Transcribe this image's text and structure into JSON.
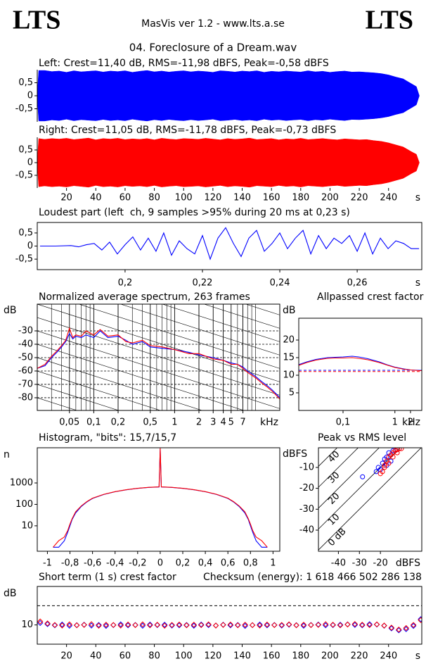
{
  "header": {
    "left_logo": "LTS",
    "right_logo": "LTS",
    "subtitle": "MasVis ver 1.2 - www.lts.a.se",
    "track": "04. Foreclosure of a Dream.wav"
  },
  "chart_data": [
    {
      "type": "area",
      "mirrored": true,
      "title": "Left: Crest=11,40 dB, RMS=-11,98 dBFS, Peak=-0,58 dBFS",
      "color": "#0000ff",
      "x": [
        0,
        1,
        5,
        10,
        15,
        20,
        25,
        30,
        35,
        40,
        45,
        50,
        55,
        60,
        65,
        70,
        75,
        80,
        85,
        90,
        95,
        100,
        105,
        110,
        115,
        120,
        125,
        130,
        135,
        140,
        145,
        150,
        155,
        160,
        165,
        170,
        175,
        180,
        185,
        190,
        195,
        200,
        205,
        210,
        215,
        220,
        225,
        230,
        235,
        240,
        245,
        250,
        253,
        256,
        259,
        261
      ],
      "values": [
        0.05,
        0.97,
        0.97,
        0.93,
        0.95,
        0.9,
        0.96,
        0.92,
        0.94,
        0.96,
        0.91,
        0.95,
        0.93,
        0.96,
        0.9,
        0.94,
        0.97,
        0.92,
        0.95,
        0.91,
        0.94,
        0.96,
        0.92,
        0.95,
        0.93,
        0.9,
        0.96,
        0.94,
        0.91,
        0.95,
        0.93,
        0.96,
        0.9,
        0.94,
        0.92,
        0.95,
        0.93,
        0.91,
        0.96,
        0.92,
        0.94,
        0.9,
        0.93,
        0.95,
        0.91,
        0.92,
        0.9,
        0.88,
        0.85,
        0.8,
        0.72,
        0.65,
        0.55,
        0.45,
        0.35,
        0
      ],
      "xlim": [
        0,
        262.7
      ],
      "ylim": [
        -1,
        1
      ],
      "yticks": [
        {
          "value": 0.5,
          "label": "0,5"
        },
        0,
        {
          "value": -0.5,
          "label": "-0,5"
        }
      ]
    },
    {
      "type": "area",
      "mirrored": true,
      "title": "Right: Crest=11,05 dB, RMS=-11,78 dBFS, Peak=-0,73 dBFS",
      "color": "#ff0000",
      "x": [
        0,
        1,
        5,
        10,
        15,
        20,
        25,
        30,
        35,
        40,
        45,
        50,
        55,
        60,
        65,
        70,
        75,
        80,
        85,
        90,
        95,
        100,
        105,
        110,
        115,
        120,
        125,
        130,
        135,
        140,
        145,
        150,
        155,
        160,
        165,
        170,
        175,
        180,
        185,
        190,
        195,
        200,
        205,
        210,
        215,
        220,
        225,
        230,
        235,
        240,
        245,
        250,
        253,
        256,
        259,
        261
      ],
      "values": [
        0.05,
        0.95,
        0.92,
        0.95,
        0.93,
        0.96,
        0.91,
        0.94,
        0.97,
        0.9,
        0.95,
        0.93,
        0.96,
        0.91,
        0.94,
        0.92,
        0.95,
        0.9,
        0.96,
        0.93,
        0.91,
        0.95,
        0.94,
        0.92,
        0.96,
        0.93,
        0.9,
        0.95,
        0.92,
        0.94,
        0.97,
        0.91,
        0.93,
        0.95,
        0.9,
        0.94,
        0.92,
        0.96,
        0.91,
        0.93,
        0.95,
        0.92,
        0.9,
        0.94,
        0.92,
        0.9,
        0.91,
        0.87,
        0.84,
        0.78,
        0.7,
        0.62,
        0.52,
        0.42,
        0.33,
        0
      ],
      "xlim": [
        0,
        262.7
      ],
      "ylim": [
        -1,
        1
      ],
      "yticks": [
        {
          "value": 0.5,
          "label": "0,5"
        },
        0,
        {
          "value": -0.5,
          "label": "-0,5"
        }
      ],
      "xticks": [
        20,
        40,
        60,
        80,
        100,
        120,
        140,
        160,
        180,
        200,
        220,
        240
      ],
      "x_unit": "s"
    },
    {
      "type": "line",
      "title": "Loudest part (left  ch, 9 samples >95% during 20 ms at 0,23 s)",
      "color": "#0000ff",
      "x": [
        0.178,
        0.182,
        0.186,
        0.188,
        0.19,
        0.192,
        0.194,
        0.196,
        0.198,
        0.2,
        0.202,
        0.204,
        0.206,
        0.208,
        0.21,
        0.212,
        0.214,
        0.216,
        0.218,
        0.22,
        0.222,
        0.224,
        0.226,
        0.228,
        0.23,
        0.232,
        0.234,
        0.236,
        0.238,
        0.24,
        0.242,
        0.244,
        0.246,
        0.248,
        0.25,
        0.252,
        0.254,
        0.256,
        0.258,
        0.26,
        0.262,
        0.264,
        0.266,
        0.268,
        0.27,
        0.272,
        0.274,
        0.276
      ],
      "values": [
        0,
        0,
        0.02,
        -0.03,
        0.05,
        0.1,
        -0.15,
        0.15,
        -0.3,
        0.05,
        0.35,
        -0.15,
        0.3,
        -0.2,
        0.5,
        -0.35,
        0.2,
        -0.1,
        -0.3,
        0.4,
        -0.5,
        0.3,
        0.7,
        0.1,
        -0.4,
        0.3,
        0.6,
        -0.2,
        0.1,
        0.5,
        -0.1,
        0.3,
        0.6,
        -0.3,
        0.4,
        -0.1,
        0.3,
        0.1,
        0.4,
        -0.2,
        0.5,
        -0.3,
        0.3,
        -0.1,
        0.2,
        0.1,
        -0.1,
        -0.1
      ],
      "xlim": [
        0.1773,
        0.2767
      ],
      "ylim": [
        -0.9,
        0.9
      ],
      "yticks": [
        {
          "value": 0.5,
          "label": "0,5"
        },
        0,
        {
          "value": -0.5,
          "label": "-0,5"
        }
      ],
      "xticks": [
        {
          "value": 0.2,
          "label": "0,2"
        },
        {
          "value": 0.22,
          "label": "0,22"
        },
        {
          "value": 0.24,
          "label": "0,24"
        },
        {
          "value": 0.26,
          "label": "0,26"
        }
      ],
      "x_unit": "s"
    },
    {
      "type": "line",
      "title": "Normalized average spectrum, 263 frames",
      "xscale": "log",
      "grid": true,
      "ylabel": "dB",
      "x_unit": "kHz",
      "x": [
        0.02,
        0.025,
        0.03,
        0.035,
        0.04,
        0.045,
        0.05,
        0.055,
        0.06,
        0.07,
        0.08,
        0.1,
        0.12,
        0.15,
        0.2,
        0.25,
        0.3,
        0.4,
        0.5,
        0.7,
        1,
        1.5,
        2,
        3,
        4,
        5,
        6,
        7,
        8,
        10,
        12,
        14,
        16,
        18,
        20
      ],
      "series": [
        {
          "color": "#0000ff",
          "values": [
            -58,
            -56,
            -50,
            -46,
            -42,
            -38,
            -32,
            -36,
            -34,
            -35,
            -33,
            -35,
            -30,
            -35,
            -34,
            -37,
            -40,
            -38,
            -42,
            -43,
            -44,
            -46,
            -48,
            -50,
            -52,
            -54,
            -55,
            -57,
            -60,
            -64,
            -68,
            -71,
            -74,
            -77,
            -80
          ]
        },
        {
          "color": "#ff0000",
          "values": [
            -58,
            -55,
            -49,
            -45,
            -41,
            -37,
            -28,
            -35,
            -33,
            -34,
            -30,
            -33,
            -29,
            -34,
            -33,
            -38,
            -39,
            -37,
            -41,
            -42,
            -44,
            -47,
            -47,
            -51,
            -52,
            -55,
            -55,
            -58,
            -61,
            -65,
            -69,
            -72,
            -75,
            -78,
            -81
          ]
        }
      ],
      "xlim": [
        0.02,
        20
      ],
      "ylim": [
        -89.5,
        -10
      ],
      "yticks": [
        -30,
        -40,
        -50,
        -60,
        -70,
        -80
      ],
      "xticks": [
        {
          "value": 0.05,
          "label": "0,05"
        },
        {
          "value": 0.1,
          "label": "0,1"
        },
        {
          "value": 0.2,
          "label": "0,2"
        },
        {
          "value": 0.5,
          "label": "0,5"
        },
        1,
        2,
        3,
        4,
        5,
        7
      ]
    },
    {
      "type": "line",
      "title": "Allpassed crest factor",
      "xscale": "log",
      "ylabel": "dB",
      "x_unit": "kHz",
      "x": [
        0.014,
        0.02,
        0.03,
        0.05,
        0.07,
        0.1,
        0.15,
        0.2,
        0.3,
        0.5,
        0.7,
        1,
        1.5,
        2,
        3,
        3.3
      ],
      "series": [
        {
          "color": "#0000ff",
          "values": [
            13,
            13.8,
            14.5,
            15,
            15.1,
            15.2,
            15.4,
            15.2,
            14.7,
            13.8,
            13,
            12.3,
            11.8,
            11.5,
            11.4,
            11.4
          ]
        },
        {
          "color": "#ff0000",
          "values": [
            12.8,
            13.6,
            14.3,
            14.8,
            14.9,
            14.9,
            15,
            14.8,
            14.4,
            13.6,
            12.9,
            12.2,
            11.7,
            11.5,
            11.3,
            11.3
          ]
        }
      ],
      "reference_lines": [
        {
          "value": 11.4,
          "color": "#0000ff"
        },
        {
          "value": 11.05,
          "color": "#ff0000"
        }
      ],
      "xlim": [
        0.014,
        3.3
      ],
      "ylim": [
        0,
        26.2
      ],
      "yticks": [
        20,
        15,
        10,
        5
      ],
      "xticks": [
        {
          "value": 0.1,
          "label": "0,1"
        },
        1,
        2
      ]
    },
    {
      "type": "line",
      "title": "Histogram, \"bits\": 15,7/15,7",
      "yscale": "log",
      "ylabel": "n",
      "x": [
        -0.95,
        -0.9,
        -0.85,
        -0.82,
        -0.8,
        -0.78,
        -0.75,
        -0.7,
        -0.65,
        -0.6,
        -0.5,
        -0.4,
        -0.3,
        -0.2,
        -0.1,
        -0.01,
        0,
        0.01,
        0.1,
        0.2,
        0.3,
        0.4,
        0.5,
        0.6,
        0.65,
        0.7,
        0.75,
        0.78,
        0.8,
        0.82,
        0.85,
        0.9,
        0.95
      ],
      "series": [
        {
          "color": "#0000ff",
          "values": [
            1,
            1,
            2,
            5,
            10,
            20,
            40,
            80,
            130,
            190,
            290,
            390,
            480,
            560,
            620,
            650,
            40000,
            650,
            620,
            560,
            480,
            390,
            290,
            190,
            130,
            80,
            40,
            20,
            10,
            5,
            2,
            1,
            1
          ]
        },
        {
          "color": "#ff0000",
          "values": [
            1,
            2,
            3,
            6,
            12,
            22,
            45,
            85,
            135,
            195,
            295,
            395,
            485,
            565,
            625,
            655,
            42000,
            655,
            625,
            565,
            485,
            395,
            295,
            195,
            135,
            85,
            45,
            22,
            12,
            6,
            3,
            2,
            1
          ]
        }
      ],
      "xlim": [
        -1.09,
        1.06
      ],
      "ylim": [
        0.65,
        44000
      ],
      "yticks": [
        1000,
        100,
        10
      ],
      "xticks": [
        -1,
        {
          "value": -0.8,
          "label": "-0,8"
        },
        {
          "value": -0.6,
          "label": "-0,6"
        },
        {
          "value": -0.4,
          "label": "-0,4"
        },
        {
          "value": -0.2,
          "label": "-0,2"
        },
        0,
        {
          "value": 0.2,
          "label": "0,2"
        },
        {
          "value": 0.4,
          "label": "0,4"
        },
        {
          "value": 0.6,
          "label": "0,6"
        },
        {
          "value": 0.8,
          "label": "0,8"
        },
        1
      ]
    },
    {
      "type": "scatter",
      "marker": "circle",
      "title": "Peak vs RMS level",
      "ylabel": "dBFS",
      "x_unit": "dBFS",
      "series": [
        {
          "color": "#0000ff",
          "x": [
            -28.5,
            -22,
            -21,
            -20,
            -19,
            -18,
            -17,
            -16,
            -15,
            -14,
            -13,
            -12,
            -11,
            -15,
            -17
          ],
          "values": [
            -14.5,
            -12,
            -10,
            -11,
            -8,
            -6,
            -5,
            -3,
            -4,
            -2,
            -2,
            -1.5,
            -1,
            -7,
            -9
          ]
        },
        {
          "color": "#ff0000",
          "x": [
            -20,
            -19,
            -18,
            -17,
            -16,
            -15,
            -14,
            -13,
            -12,
            -11,
            -10,
            -16,
            -18,
            -14,
            -12
          ],
          "values": [
            -13,
            -12,
            -10,
            -7,
            -5,
            -4,
            -3,
            -2,
            -1.5,
            -1,
            -1,
            -8,
            -9,
            -5,
            -3
          ]
        }
      ],
      "crest_lines": [
        {
          "value": 40,
          "label": "40"
        },
        {
          "value": 30,
          "label": "30"
        },
        {
          "value": 20,
          "label": "20"
        },
        {
          "value": 10,
          "label": "10"
        },
        {
          "value": 0,
          "label": "0 dB"
        }
      ],
      "xlim": [
        -49.5,
        -0.3
      ],
      "ylim": [
        -50.1,
        -0.6
      ],
      "yticks": [
        -10,
        -20,
        -30,
        -40
      ],
      "xticks": [
        -40,
        -30,
        -20
      ]
    },
    {
      "type": "scatter",
      "marker": "diamond",
      "title": "Short term (1 s) crest factor",
      "annotation": "Checksum (energy): 1 618 466 502 286 138",
      "ylabel": "dB",
      "x_unit": "s",
      "x": [
        2,
        7,
        12,
        17,
        22,
        27,
        32,
        37,
        42,
        47,
        52,
        57,
        62,
        67,
        72,
        77,
        82,
        87,
        92,
        97,
        102,
        107,
        112,
        117,
        122,
        127,
        132,
        137,
        142,
        147,
        152,
        157,
        162,
        167,
        172,
        177,
        182,
        187,
        192,
        197,
        202,
        207,
        212,
        217,
        222,
        227,
        232,
        237,
        242,
        247,
        252,
        257,
        262
      ],
      "series": [
        {
          "color": "#0000ff",
          "values": [
            11.0,
            10.4,
            9.8,
            10.2,
            9.6,
            9.9,
            10.1,
            9.7,
            10.0,
            9.5,
            9.9,
            10.3,
            9.8,
            10.0,
            9.6,
            10.2,
            9.9,
            10.1,
            9.7,
            9.8,
            10.0,
            9.6,
            10.2,
            9.9,
            9.7,
            10.1,
            9.8,
            10.0,
            9.5,
            9.9,
            10.2,
            9.8,
            10.0,
            9.7,
            10.1,
            9.9,
            9.6,
            10.0,
            10.2,
            9.8,
            9.9,
            10.1,
            10.3,
            10.0,
            9.8,
            10.4,
            10.2,
            9.6,
            8.2,
            7.2,
            7.8,
            9.5,
            13.0
          ]
        },
        {
          "color": "#ff0000",
          "values": [
            11.8,
            10.8,
            10.0,
            9.7,
            10.3,
            9.8,
            10.0,
            10.4,
            9.6,
            10.1,
            10.0,
            9.7,
            10.2,
            9.9,
            10.3,
            9.8,
            10.1,
            9.6,
            10.0,
            10.2,
            9.8,
            10.1,
            9.9,
            10.3,
            9.7,
            10.0,
            10.2,
            9.8,
            10.1,
            9.9,
            9.7,
            10.2,
            9.9,
            10.0,
            10.3,
            9.8,
            10.1,
            9.9,
            10.0,
            10.4,
            10.1,
            9.8,
            10.2,
            10.5,
            10.1,
            9.9,
            10.3,
            9.7,
            8.6,
            7.6,
            8.4,
            10.0,
            12.5
          ]
        }
      ],
      "reference_lines": [
        {
          "value": 20,
          "color": "#000000"
        }
      ],
      "xlim": [
        0,
        262.7
      ],
      "ylim": [
        0,
        30
      ],
      "yticks": [
        10
      ],
      "xticks": [
        20,
        40,
        60,
        80,
        100,
        120,
        140,
        160,
        180,
        200,
        220,
        240
      ]
    }
  ]
}
